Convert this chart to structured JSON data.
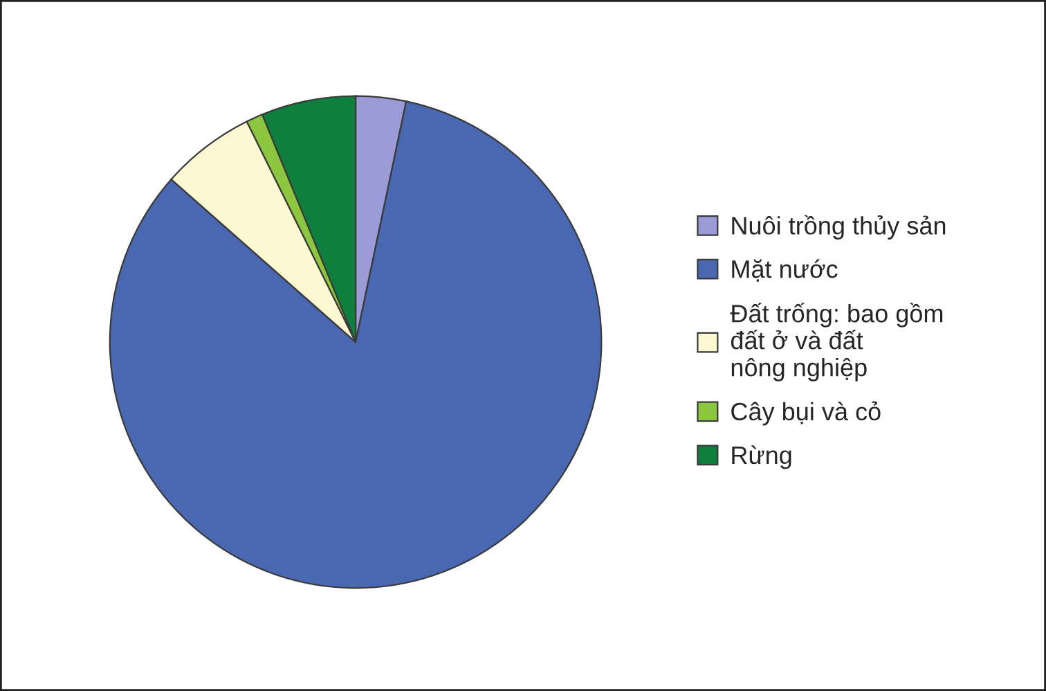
{
  "chart_data": {
    "type": "pie",
    "categories": [
      "Nuôi trồng thủy sản",
      "Mặt nước",
      "Đất trống: bao gồm\nđất ở và đất\nnông nghiệp",
      "Cây bụi và cỏ",
      "Rừng"
    ],
    "values": [
      3.3,
      83.2,
      6.2,
      1.1,
      6.2
    ],
    "colors": [
      "#9b9bd8",
      "#4a67b1",
      "#fcf8d2",
      "#8dc63f",
      "#0e7f3c"
    ],
    "legend": "right"
  }
}
